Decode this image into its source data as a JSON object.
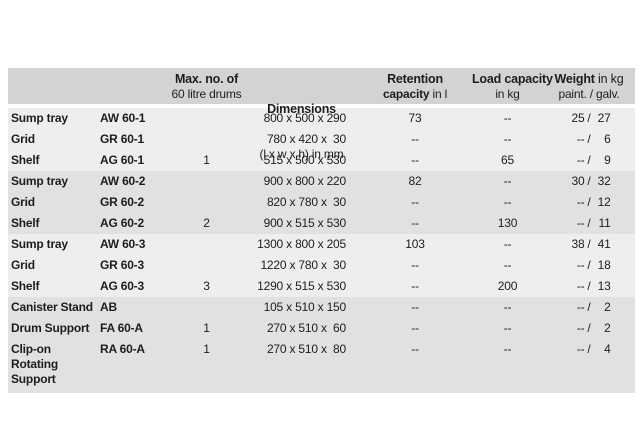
{
  "colors": {
    "page_bg": "#ffffff",
    "header_bg": "#d3d3d3",
    "band_light": "#eeeeee",
    "band_dark": "#e1e1e1",
    "text": "#1d1d1b"
  },
  "header": {
    "max_drums": {
      "line1": "Max. no. of",
      "line2": "60 litre drums"
    },
    "dimensions": {
      "line1": "Dimensions",
      "line2": "(l x w x h) in mm"
    },
    "retention": {
      "line1": "Retention",
      "line2_bold": "capacity",
      "line2_rest": "in l"
    },
    "load": {
      "line1": "Load capacity",
      "line2": "in kg"
    },
    "weight": {
      "line1_bold": "Weight",
      "line1_rest": "in kg",
      "line2": "paint. / galv."
    }
  },
  "weight_separator": "/",
  "rows": [
    {
      "name": "Sump tray",
      "model": "AW 60-1",
      "max_drums": "",
      "dimensions": "800 x 500 x 290",
      "retention": "73",
      "load": "--",
      "weight_paint": "25",
      "weight_galv": "27",
      "group": 1
    },
    {
      "name": "Grid",
      "model": "GR 60-1",
      "max_drums": "",
      "dimensions": "780 x 420 x  30",
      "retention": "--",
      "load": "--",
      "weight_paint": "--",
      "weight_galv": "6",
      "group": 1
    },
    {
      "name": "Shelf",
      "model": "AG 60-1",
      "max_drums": "1",
      "dimensions": "515 x 500 x 530",
      "retention": "--",
      "load": "65",
      "weight_paint": "--",
      "weight_galv": "9",
      "group": 1
    },
    {
      "name": "Sump tray",
      "model": "AW 60-2",
      "max_drums": "",
      "dimensions": "900 x 800 x 220",
      "retention": "82",
      "load": "--",
      "weight_paint": "30",
      "weight_galv": "32",
      "group": 2
    },
    {
      "name": "Grid",
      "model": "GR 60-2",
      "max_drums": "",
      "dimensions": "820 x 780 x  30",
      "retention": "--",
      "load": "--",
      "weight_paint": "--",
      "weight_galv": "12",
      "group": 2
    },
    {
      "name": "Shelf",
      "model": "AG 60-2",
      "max_drums": "2",
      "dimensions": "900 x 515 x 530",
      "retention": "--",
      "load": "130",
      "weight_paint": "--",
      "weight_galv": "11",
      "group": 2
    },
    {
      "name": "Sump tray",
      "model": "AW 60-3",
      "max_drums": "",
      "dimensions": "1300 x 800 x 205",
      "retention": "103",
      "load": "--",
      "weight_paint": "38",
      "weight_galv": "41",
      "group": 3
    },
    {
      "name": "Grid",
      "model": "GR 60-3",
      "max_drums": "",
      "dimensions": "1220 x 780 x  30",
      "retention": "--",
      "load": "--",
      "weight_paint": "--",
      "weight_galv": "18",
      "group": 3
    },
    {
      "name": "Shelf",
      "model": "AG 60-3",
      "max_drums": "3",
      "dimensions": "1290 x 515 x 530",
      "retention": "--",
      "load": "200",
      "weight_paint": "--",
      "weight_galv": "13",
      "group": 3
    },
    {
      "name": "Canister Stand",
      "model": "AB",
      "max_drums": "",
      "dimensions": "105 x 510 x 150",
      "retention": "--",
      "load": "--",
      "weight_paint": "--",
      "weight_galv": "2",
      "group": 4
    },
    {
      "name": "Drum Support",
      "model": "FA 60-A",
      "max_drums": "1",
      "dimensions": "270 x 510 x  60",
      "retention": "--",
      "load": "--",
      "weight_paint": "--",
      "weight_galv": "2",
      "group": 4
    },
    {
      "name": "Clip-on Rotating Support",
      "model": "RA 60-A",
      "max_drums": "1",
      "dimensions": "270 x 510 x  80",
      "retention": "--",
      "load": "--",
      "weight_paint": "--",
      "weight_galv": "4",
      "group": 4
    }
  ]
}
